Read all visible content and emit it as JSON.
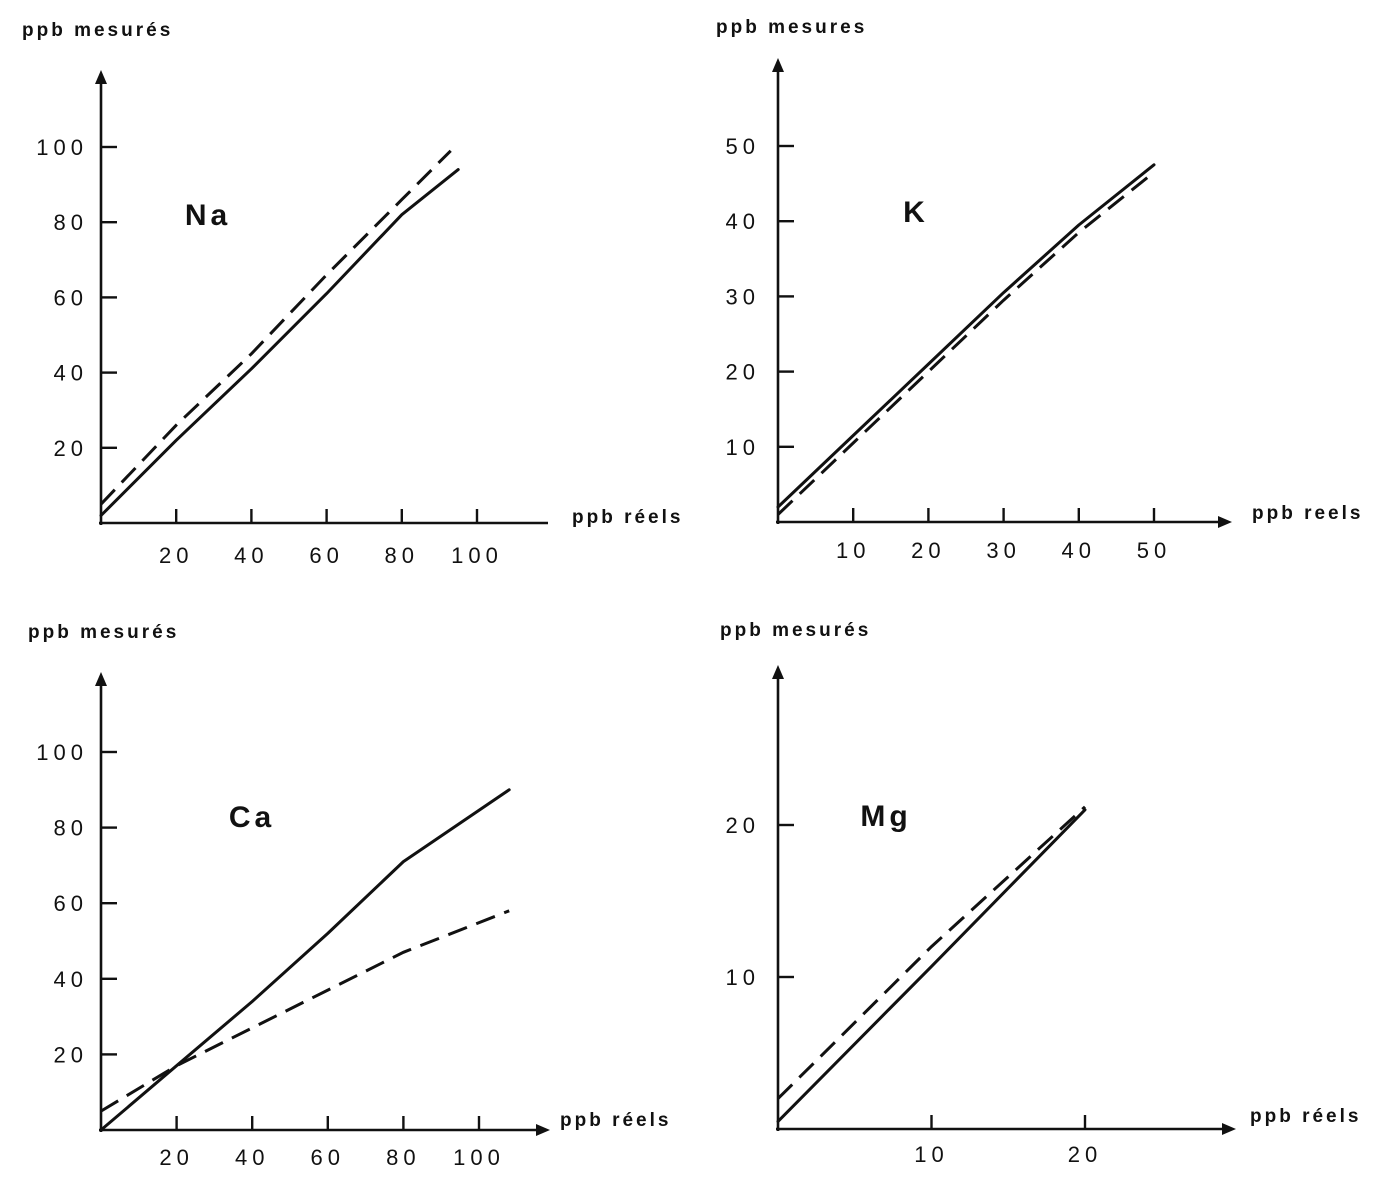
{
  "chart_data": [
    {
      "type": "line",
      "title": "Na",
      "xlabel": "ppb réels",
      "ylabel": "ppb mesurés",
      "xlim": [
        0,
        100
      ],
      "ylim": [
        0,
        100
      ],
      "xticks": [
        20,
        40,
        60,
        80,
        100
      ],
      "yticks": [
        20,
        40,
        60,
        80,
        100
      ],
      "grid": false,
      "series": [
        {
          "style": "solid",
          "x": [
            0,
            20,
            40,
            60,
            80,
            95
          ],
          "y": [
            2,
            22,
            41,
            61,
            82,
            94
          ]
        },
        {
          "style": "dashed",
          "x": [
            0,
            20,
            40,
            60,
            80,
            93
          ],
          "y": [
            5,
            26,
            45,
            66,
            86,
            99
          ]
        }
      ]
    },
    {
      "type": "line",
      "title": "K",
      "xlabel": "ppb reels",
      "ylabel": "ppb mesures",
      "xlim": [
        0,
        50
      ],
      "ylim": [
        0,
        50
      ],
      "xticks": [
        10,
        20,
        30,
        40,
        50
      ],
      "yticks": [
        10,
        20,
        30,
        40,
        50
      ],
      "grid": false,
      "series": [
        {
          "style": "solid",
          "x": [
            0,
            10,
            20,
            30,
            40,
            50
          ],
          "y": [
            2,
            11.5,
            21,
            30.5,
            39.5,
            47.5
          ]
        },
        {
          "style": "dashed",
          "x": [
            0,
            10,
            20,
            30,
            40,
            50
          ],
          "y": [
            1,
            10.5,
            20,
            29.5,
            38.5,
            46.5
          ]
        }
      ]
    },
    {
      "type": "line",
      "title": "Ca",
      "xlabel": "ppb réels",
      "ylabel": "ppb mesurés",
      "xlim": [
        0,
        110
      ],
      "ylim": [
        0,
        110
      ],
      "xticks": [
        20,
        40,
        60,
        80,
        100
      ],
      "yticks": [
        20,
        40,
        60,
        80,
        100
      ],
      "grid": false,
      "series": [
        {
          "style": "solid",
          "x": [
            0,
            20,
            40,
            60,
            80,
            108
          ],
          "y": [
            0,
            17,
            34,
            52,
            71,
            90
          ]
        },
        {
          "style": "dashed",
          "x": [
            0,
            20,
            40,
            60,
            80,
            108
          ],
          "y": [
            5,
            17,
            27,
            37,
            47,
            58
          ]
        }
      ]
    },
    {
      "type": "line",
      "title": "Mg",
      "xlabel": "ppb réels",
      "ylabel": "ppb mesurés",
      "xlim": [
        0,
        30
      ],
      "ylim": [
        0,
        30
      ],
      "xticks": [
        10,
        20
      ],
      "yticks": [
        10,
        20
      ],
      "grid": false,
      "series": [
        {
          "style": "solid",
          "x": [
            0,
            10,
            20
          ],
          "y": [
            0.5,
            10.7,
            21
          ]
        },
        {
          "style": "dashed",
          "x": [
            0,
            10,
            20
          ],
          "y": [
            2,
            12,
            21.2
          ]
        }
      ]
    }
  ]
}
